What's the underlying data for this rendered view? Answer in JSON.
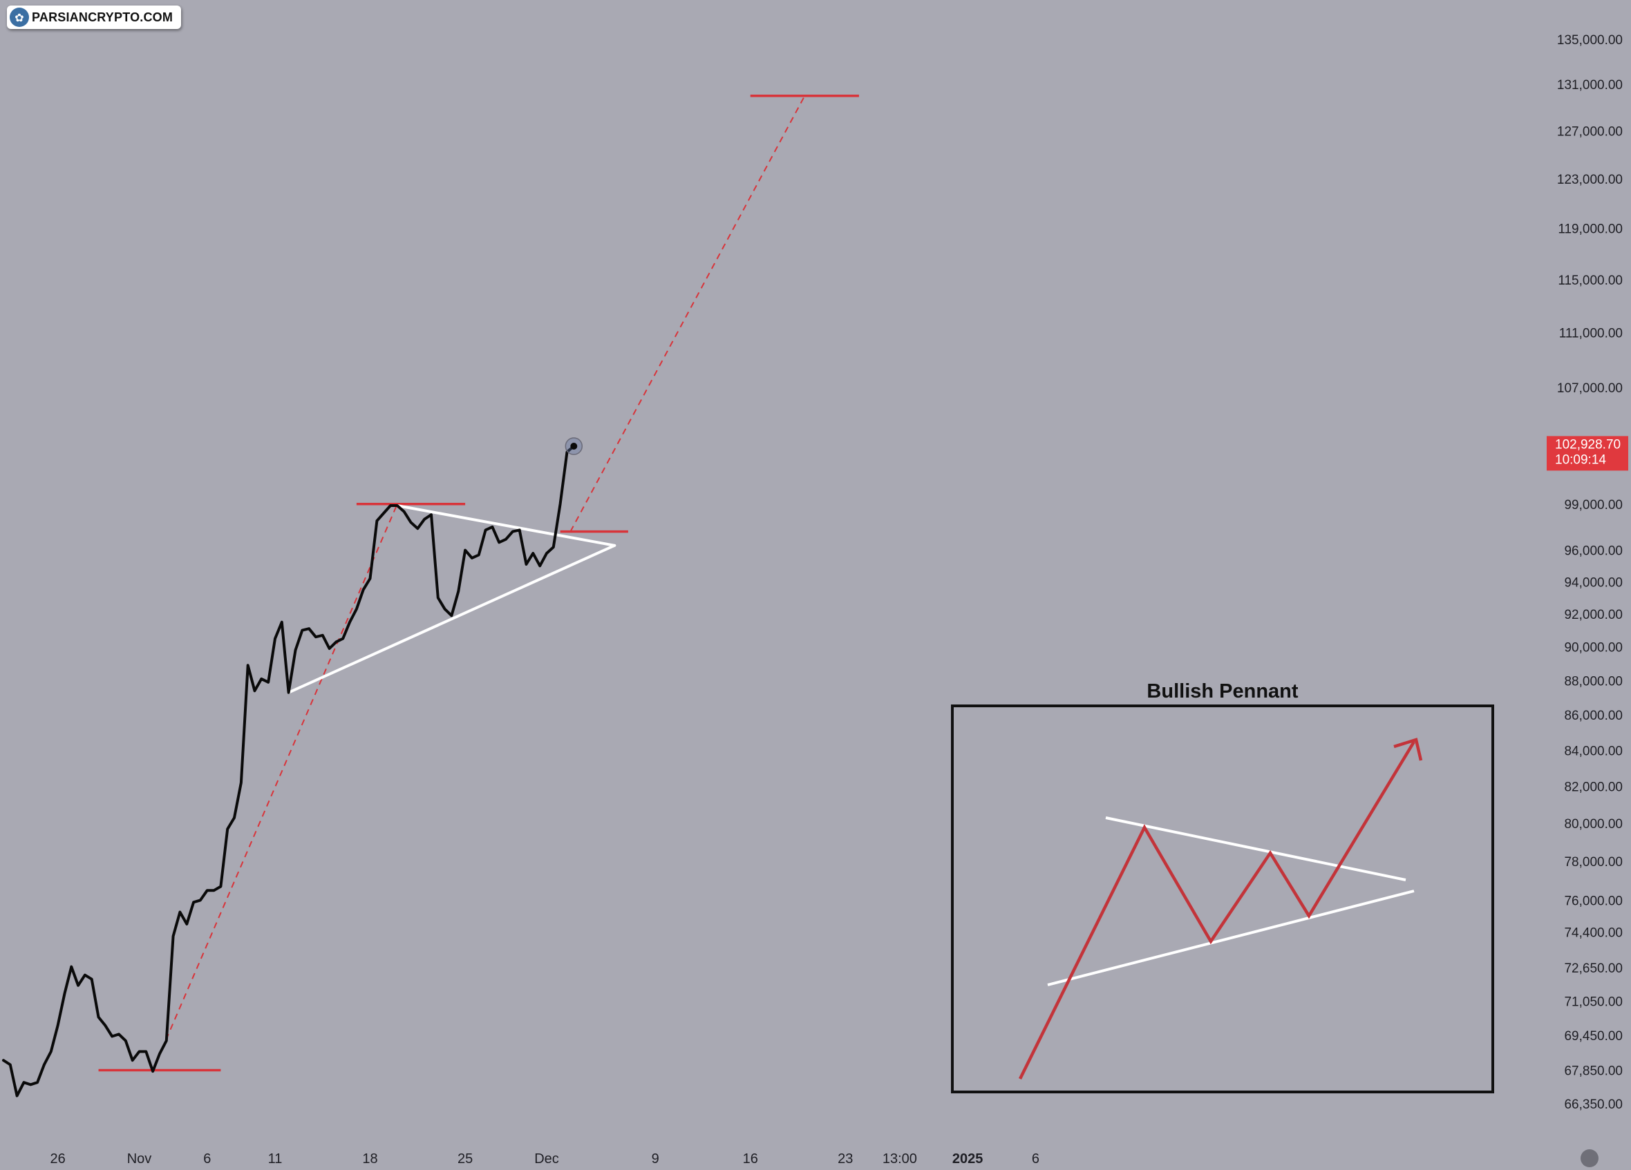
{
  "watermark": {
    "text": "PARSIANCRYPTO.COM",
    "icon": "tree-logo-icon",
    "icon_glyph": "✿"
  },
  "colors": {
    "background": "#a9a9b3",
    "price_line": "#0a0a0a",
    "pennant_lines": "#ffffff",
    "levels": "#d8343a",
    "tag_background": "#e0393e",
    "inset_zigzag": "#c3343a"
  },
  "chart_data": {
    "type": "line",
    "x_axis": {
      "labels": [
        "26",
        "Nov",
        "6",
        "11",
        "18",
        "25",
        "Dec",
        "9",
        "16",
        "23",
        "13:00",
        "2025",
        "6"
      ],
      "bold_label": "2025"
    },
    "y_axis": {
      "tick_labels": [
        "135,000.00",
        "131,000.00",
        "127,000.00",
        "123,000.00",
        "119,000.00",
        "115,000.00",
        "111,000.00",
        "107,000.00",
        "99,000.00",
        "96,000.00",
        "94,000.00",
        "92,000.00",
        "90,000.00",
        "88,000.00",
        "86,000.00",
        "84,000.00",
        "82,000.00",
        "80,000.00",
        "78,000.00",
        "76,000.00",
        "74,400.00",
        "72,650.00",
        "71,050.00",
        "69,450.00",
        "67,850.00",
        "66,350.00"
      ],
      "scale": "log",
      "range": [
        65500,
        137000
      ]
    },
    "series": [
      {
        "values": [
          {
            "x": "2024-10-22",
            "y": 68300
          },
          {
            "x": "2024-10-22T12",
            "y": 68100
          },
          {
            "x": "2024-10-23",
            "y": 66700
          },
          {
            "x": "2024-10-23T12",
            "y": 67300
          },
          {
            "x": "2024-10-24",
            "y": 67200
          },
          {
            "x": "2024-10-24T12",
            "y": 67300
          },
          {
            "x": "2024-10-25",
            "y": 68100
          },
          {
            "x": "2024-10-25T12",
            "y": 68700
          },
          {
            "x": "2024-10-26",
            "y": 69900
          },
          {
            "x": "2024-10-26T12",
            "y": 71400
          },
          {
            "x": "2024-10-27",
            "y": 72700
          },
          {
            "x": "2024-10-27T12",
            "y": 71800
          },
          {
            "x": "2024-10-28",
            "y": 72300
          },
          {
            "x": "2024-10-28T12",
            "y": 72100
          },
          {
            "x": "2024-10-29",
            "y": 70300
          },
          {
            "x": "2024-10-29T12",
            "y": 69900
          },
          {
            "x": "2024-10-30",
            "y": 69400
          },
          {
            "x": "2024-10-30T12",
            "y": 69500
          },
          {
            "x": "2024-10-31",
            "y": 69200
          },
          {
            "x": "2024-10-31T12",
            "y": 68300
          },
          {
            "x": "2024-11-01",
            "y": 68700
          },
          {
            "x": "2024-11-01T12",
            "y": 68700
          },
          {
            "x": "2024-11-02",
            "y": 67800
          },
          {
            "x": "2024-11-02T12",
            "y": 68600
          },
          {
            "x": "2024-11-03",
            "y": 69200
          },
          {
            "x": "2024-11-03T12",
            "y": 74200
          },
          {
            "x": "2024-11-04",
            "y": 75400
          },
          {
            "x": "2024-11-04T12",
            "y": 74800
          },
          {
            "x": "2024-11-05",
            "y": 75900
          },
          {
            "x": "2024-11-05T12",
            "y": 76000
          },
          {
            "x": "2024-11-06",
            "y": 76500
          },
          {
            "x": "2024-11-06T12",
            "y": 76500
          },
          {
            "x": "2024-11-07",
            "y": 76700
          },
          {
            "x": "2024-11-07T12",
            "y": 79700
          },
          {
            "x": "2024-11-08",
            "y": 80300
          },
          {
            "x": "2024-11-08T12",
            "y": 82200
          },
          {
            "x": "2024-11-09",
            "y": 88900
          },
          {
            "x": "2024-11-09T12",
            "y": 87400
          },
          {
            "x": "2024-11-10",
            "y": 88100
          },
          {
            "x": "2024-11-10T12",
            "y": 87900
          },
          {
            "x": "2024-11-11",
            "y": 90500
          },
          {
            "x": "2024-11-11T12",
            "y": 91500
          },
          {
            "x": "2024-11-12",
            "y": 87300
          },
          {
            "x": "2024-11-12T12",
            "y": 89800
          },
          {
            "x": "2024-11-13",
            "y": 91000
          },
          {
            "x": "2024-11-13T12",
            "y": 91100
          },
          {
            "x": "2024-11-14",
            "y": 90600
          },
          {
            "x": "2024-11-14T12",
            "y": 90700
          },
          {
            "x": "2024-11-15",
            "y": 89900
          },
          {
            "x": "2024-11-15T12",
            "y": 90300
          },
          {
            "x": "2024-11-16",
            "y": 90500
          },
          {
            "x": "2024-11-16T12",
            "y": 91500
          },
          {
            "x": "2024-11-17",
            "y": 92300
          },
          {
            "x": "2024-11-17T12",
            "y": 93500
          },
          {
            "x": "2024-11-18",
            "y": 94200
          },
          {
            "x": "2024-11-18T12",
            "y": 97900
          },
          {
            "x": "2024-11-19",
            "y": 98400
          },
          {
            "x": "2024-11-19T12",
            "y": 98900
          },
          {
            "x": "2024-11-20",
            "y": 98900
          },
          {
            "x": "2024-11-20T12",
            "y": 98500
          },
          {
            "x": "2024-11-21",
            "y": 97800
          },
          {
            "x": "2024-11-21T12",
            "y": 97400
          },
          {
            "x": "2024-11-22",
            "y": 98000
          },
          {
            "x": "2024-11-22T12",
            "y": 98300
          },
          {
            "x": "2024-11-23",
            "y": 93000
          },
          {
            "x": "2024-11-23T12",
            "y": 92300
          },
          {
            "x": "2024-11-24",
            "y": 91900
          },
          {
            "x": "2024-11-24T12",
            "y": 93400
          },
          {
            "x": "2024-11-25",
            "y": 96000
          },
          {
            "x": "2024-11-25T12",
            "y": 95500
          },
          {
            "x": "2024-11-26",
            "y": 95700
          },
          {
            "x": "2024-11-26T12",
            "y": 97300
          },
          {
            "x": "2024-11-27",
            "y": 97500
          },
          {
            "x": "2024-11-27T12",
            "y": 96500
          },
          {
            "x": "2024-11-28",
            "y": 96700
          },
          {
            "x": "2024-11-28T12",
            "y": 97200
          },
          {
            "x": "2024-11-29",
            "y": 97300
          },
          {
            "x": "2024-11-29T12",
            "y": 95100
          },
          {
            "x": "2024-11-30",
            "y": 95800
          },
          {
            "x": "2024-11-30T12",
            "y": 95000
          },
          {
            "x": "2024-12-01",
            "y": 95800
          },
          {
            "x": "2024-12-01T12",
            "y": 96200
          },
          {
            "x": "2024-12-02",
            "y": 99000
          },
          {
            "x": "2024-12-02T12",
            "y": 102500
          },
          {
            "x": "2024-12-03",
            "y": 102900
          }
        ]
      }
    ],
    "last_price": {
      "value": "102,928.70",
      "countdown": "10:09:14"
    },
    "annotations": {
      "levels": [
        {
          "y": 67850,
          "x_from": "2024-10-29",
          "x_to": "2024-11-07"
        },
        {
          "y": 99000,
          "x_from": "2024-11-17",
          "x_to": "2024-11-25"
        },
        {
          "y": 97200,
          "x_from": "2024-12-02",
          "x_to": "2024-12-07"
        },
        {
          "y": 130000,
          "x_from": "2024-12-16",
          "x_to": "2024-12-24"
        }
      ],
      "projection": [
        {
          "x": "2024-11-02",
          "y": 67850
        },
        {
          "x": "2024-11-20",
          "y": 99000
        }
      ],
      "projection_target": [
        {
          "x": "2024-12-02T18",
          "y": 97200
        },
        {
          "x": "2024-12-20",
          "y": 130000
        }
      ],
      "pennant_upper": [
        {
          "x": "2024-11-20",
          "y": 98900
        },
        {
          "x": "2024-12-06",
          "y": 96300
        }
      ],
      "pennant_lower": [
        {
          "x": "2024-11-12",
          "y": 87300
        },
        {
          "x": "2024-12-06",
          "y": 96300
        }
      ]
    },
    "inset": {
      "title": "Bullish Pennant"
    }
  }
}
